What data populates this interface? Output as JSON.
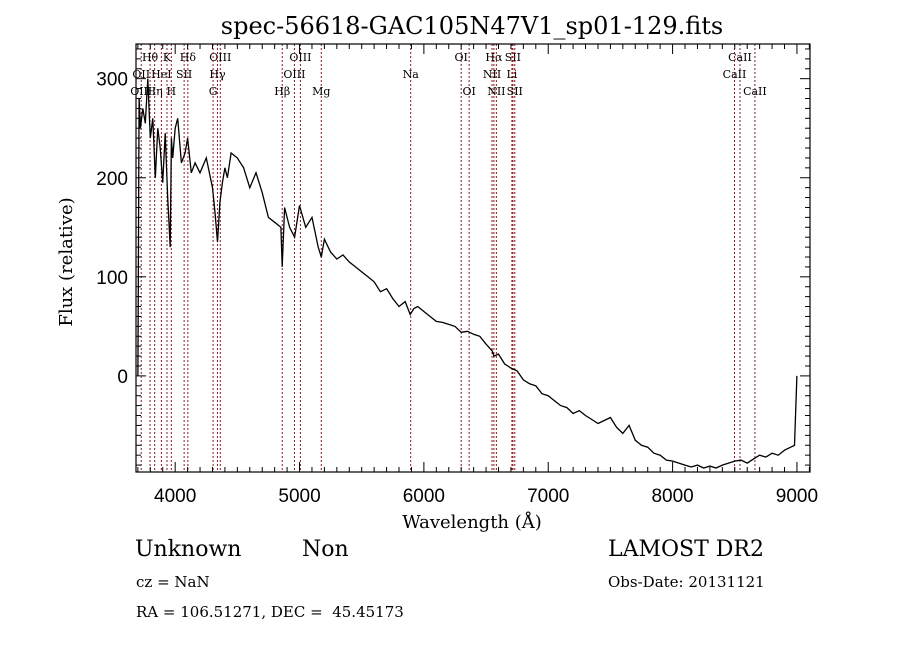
{
  "chart_data": {
    "type": "line",
    "title": "spec-56618-GAC105N47V1_sp01-129.fits",
    "xlabel": "Wavelength (Å)",
    "ylabel": "Flux (relative)",
    "xlim": [
      3685,
      9105
    ],
    "ylim": [
      -97,
      335
    ],
    "xticks": [
      4000,
      5000,
      6000,
      7000,
      8000,
      9000
    ],
    "xtick_labels": [
      "4000",
      "5000",
      "6000",
      "7000",
      "8000",
      "9000"
    ],
    "yticks": [
      0,
      100,
      200,
      300
    ],
    "ytick_labels": [
      "0",
      "100",
      "200",
      "300"
    ],
    "grid": false,
    "series": [
      {
        "name": "spectrum",
        "color": "#000000",
        "x": [
          3700,
          3710,
          3720,
          3740,
          3760,
          3780,
          3800,
          3820,
          3840,
          3860,
          3880,
          3900,
          3920,
          3940,
          3960,
          3970,
          3980,
          4000,
          4020,
          4050,
          4080,
          4100,
          4130,
          4160,
          4200,
          4250,
          4300,
          4320,
          4340,
          4360,
          4380,
          4400,
          4420,
          4450,
          4500,
          4550,
          4600,
          4650,
          4700,
          4750,
          4800,
          4850,
          4861,
          4880,
          4920,
          4960,
          5000,
          5050,
          5100,
          5150,
          5175,
          5200,
          5250,
          5300,
          5350,
          5400,
          5450,
          5500,
          5550,
          5600,
          5650,
          5700,
          5750,
          5800,
          5850,
          5890,
          5920,
          5950,
          6000,
          6050,
          6100,
          6150,
          6200,
          6250,
          6300,
          6350,
          6400,
          6450,
          6500,
          6550,
          6563,
          6600,
          6650,
          6700,
          6750,
          6800,
          6850,
          6900,
          6950,
          7000,
          7050,
          7100,
          7150,
          7200,
          7250,
          7300,
          7350,
          7400,
          7450,
          7500,
          7550,
          7600,
          7650,
          7700,
          7750,
          7800,
          7850,
          7900,
          7950,
          8000,
          8050,
          8100,
          8150,
          8200,
          8250,
          8300,
          8350,
          8400,
          8450,
          8500,
          8550,
          8600,
          8650,
          8700,
          8750,
          8800,
          8850,
          8900,
          8950,
          8980,
          9000
        ],
        "y": [
          0,
          280,
          250,
          270,
          255,
          300,
          240,
          260,
          200,
          250,
          230,
          195,
          245,
          180,
          130,
          240,
          220,
          250,
          260,
          215,
          225,
          240,
          205,
          215,
          205,
          220,
          190,
          165,
          135,
          175,
          195,
          210,
          200,
          225,
          220,
          210,
          190,
          205,
          185,
          160,
          155,
          150,
          110,
          170,
          150,
          140,
          172,
          150,
          160,
          130,
          120,
          138,
          125,
          118,
          122,
          115,
          110,
          105,
          100,
          95,
          85,
          88,
          78,
          70,
          75,
          62,
          68,
          70,
          65,
          60,
          55,
          54,
          52,
          50,
          44,
          45,
          42,
          40,
          32,
          25,
          20,
          22,
          12,
          8,
          5,
          -4,
          -8,
          -10,
          -18,
          -20,
          -25,
          -30,
          -32,
          -38,
          -35,
          -40,
          -44,
          -48,
          -45,
          -42,
          -52,
          -58,
          -50,
          -65,
          -70,
          -72,
          -78,
          -80,
          -85,
          -86,
          -88,
          -90,
          -92,
          -90,
          -93,
          -91,
          -93,
          -90,
          -88,
          -86,
          -85,
          -88,
          -84,
          -80,
          -82,
          -78,
          -80,
          -75,
          -72,
          -70,
          0
        ]
      }
    ],
    "line_markers": [
      {
        "label": "Hθ",
        "wavelength": 3798,
        "row": 1
      },
      {
        "label": "OII",
        "wavelength": 3727,
        "row": 2
      },
      {
        "label": "OIII",
        "wavelength": 3727,
        "row": 3
      },
      {
        "label": "K",
        "wavelength": 3934,
        "row": 1
      },
      {
        "label": "HeI",
        "wavelength": 3889,
        "row": 2
      },
      {
        "label": "Hη",
        "wavelength": 3835,
        "row": 3
      },
      {
        "label": "H",
        "wavelength": 3969,
        "row": 3
      },
      {
        "label": "Hδ",
        "wavelength": 4102,
        "row": 1
      },
      {
        "label": "SII",
        "wavelength": 4072,
        "row": 2
      },
      {
        "label": "OIII",
        "wavelength": 4363,
        "row": 1
      },
      {
        "label": "Hγ",
        "wavelength": 4340,
        "row": 2
      },
      {
        "label": "G",
        "wavelength": 4305,
        "row": 3
      },
      {
        "label": "Hβ",
        "wavelength": 4861,
        "row": 3
      },
      {
        "label": "OIII",
        "wavelength": 5007,
        "row": 1
      },
      {
        "label": "OIII",
        "wavelength": 4959,
        "row": 2
      },
      {
        "label": "Mg",
        "wavelength": 5175,
        "row": 3
      },
      {
        "label": "Na",
        "wavelength": 5894,
        "row": 2
      },
      {
        "label": "OI",
        "wavelength": 6300,
        "row": 1
      },
      {
        "label": "OI",
        "wavelength": 6364,
        "row": 3
      },
      {
        "label": "Hα",
        "wavelength": 6563,
        "row": 1
      },
      {
        "label": "SII",
        "wavelength": 6716,
        "row": 1
      },
      {
        "label": "NII",
        "wavelength": 6548,
        "row": 2
      },
      {
        "label": "Li",
        "wavelength": 6708,
        "row": 2
      },
      {
        "label": "NII",
        "wavelength": 6583,
        "row": 3
      },
      {
        "label": "SII",
        "wavelength": 6731,
        "row": 3
      },
      {
        "label": "CaII",
        "wavelength": 8542,
        "row": 1
      },
      {
        "label": "CaII",
        "wavelength": 8498,
        "row": 2
      },
      {
        "label": "CaII",
        "wavelength": 8662,
        "row": 3
      }
    ],
    "marker_color": "#8b1a1a"
  },
  "info": {
    "object_class": "Unknown",
    "subclass": "Non",
    "survey": "LAMOST DR2",
    "cz": "cz = NaN",
    "obs_date": "Obs-Date: 20131121",
    "coords": "RA = 106.51271, DEC =  45.45173"
  }
}
